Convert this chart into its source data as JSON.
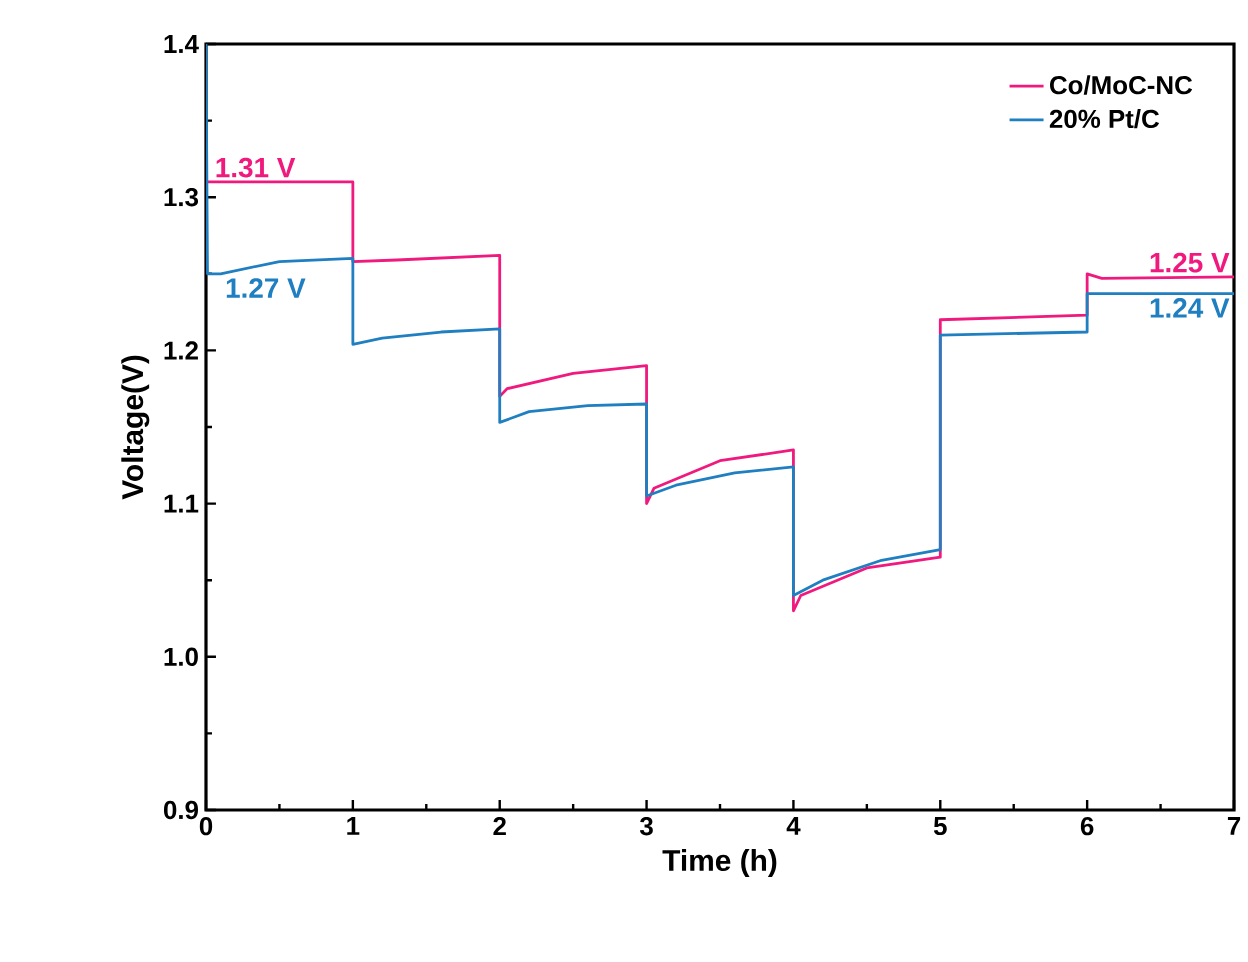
{
  "chart_data": {
    "type": "line",
    "xlabel": "Time (h)",
    "ylabel": "Voltage(V)",
    "xlim": [
      0,
      7
    ],
    "ylim": [
      0.9,
      1.4
    ],
    "xticks": [
      0,
      1,
      2,
      3,
      4,
      5,
      6,
      7
    ],
    "yticks": [
      {
        "value": 0.9,
        "label": "0.9"
      },
      {
        "value": 1.0,
        "label": "1.0"
      },
      {
        "value": 1.1,
        "label": "1.1"
      },
      {
        "value": 1.2,
        "label": "1.2"
      },
      {
        "value": 1.3,
        "label": "1.3"
      },
      {
        "value": 1.4,
        "label": "1.4"
      }
    ],
    "legend": "top right",
    "grid": false,
    "marker": "none",
    "line_style": "solid",
    "series": [
      {
        "name": "Co/MoC-NC",
        "color": "#f0197d",
        "x": [
          0,
          1,
          1,
          1.3,
          2,
          2,
          2.05,
          2.5,
          3,
          3,
          3.05,
          3.5,
          4,
          4,
          4.05,
          4.5,
          5,
          5,
          6,
          6,
          6.1,
          7
        ],
        "values": [
          1.31,
          1.31,
          1.258,
          1.259,
          1.262,
          1.17,
          1.175,
          1.185,
          1.19,
          1.1,
          1.11,
          1.128,
          1.135,
          1.03,
          1.04,
          1.058,
          1.065,
          1.22,
          1.223,
          1.25,
          1.247,
          1.248
        ]
      },
      {
        "name": "20% Pt/C",
        "color": "#1f7fc0",
        "x": [
          0,
          0.01,
          0.1,
          0.5,
          1,
          1,
          1.2,
          1.6,
          2,
          2,
          2.2,
          2.6,
          3,
          3,
          3.2,
          3.6,
          4,
          4,
          4.2,
          4.6,
          5,
          5,
          6,
          6,
          7
        ],
        "values": [
          1.4,
          1.25,
          1.25,
          1.258,
          1.26,
          1.204,
          1.208,
          1.212,
          1.214,
          1.153,
          1.16,
          1.164,
          1.165,
          1.105,
          1.112,
          1.12,
          1.124,
          1.04,
          1.05,
          1.063,
          1.07,
          1.21,
          1.212,
          1.237,
          1.237
        ]
      }
    ],
    "annotations": [
      {
        "text": "1.31 V",
        "x": 0.03,
        "y": 1.31
      },
      {
        "text": "1.27 V",
        "x": 0.1,
        "y": 1.25
      },
      {
        "text": "1.25 V",
        "x": 7,
        "y": 1.248
      },
      {
        "text": "1.24 V",
        "x": 7,
        "y": 1.237
      }
    ]
  }
}
